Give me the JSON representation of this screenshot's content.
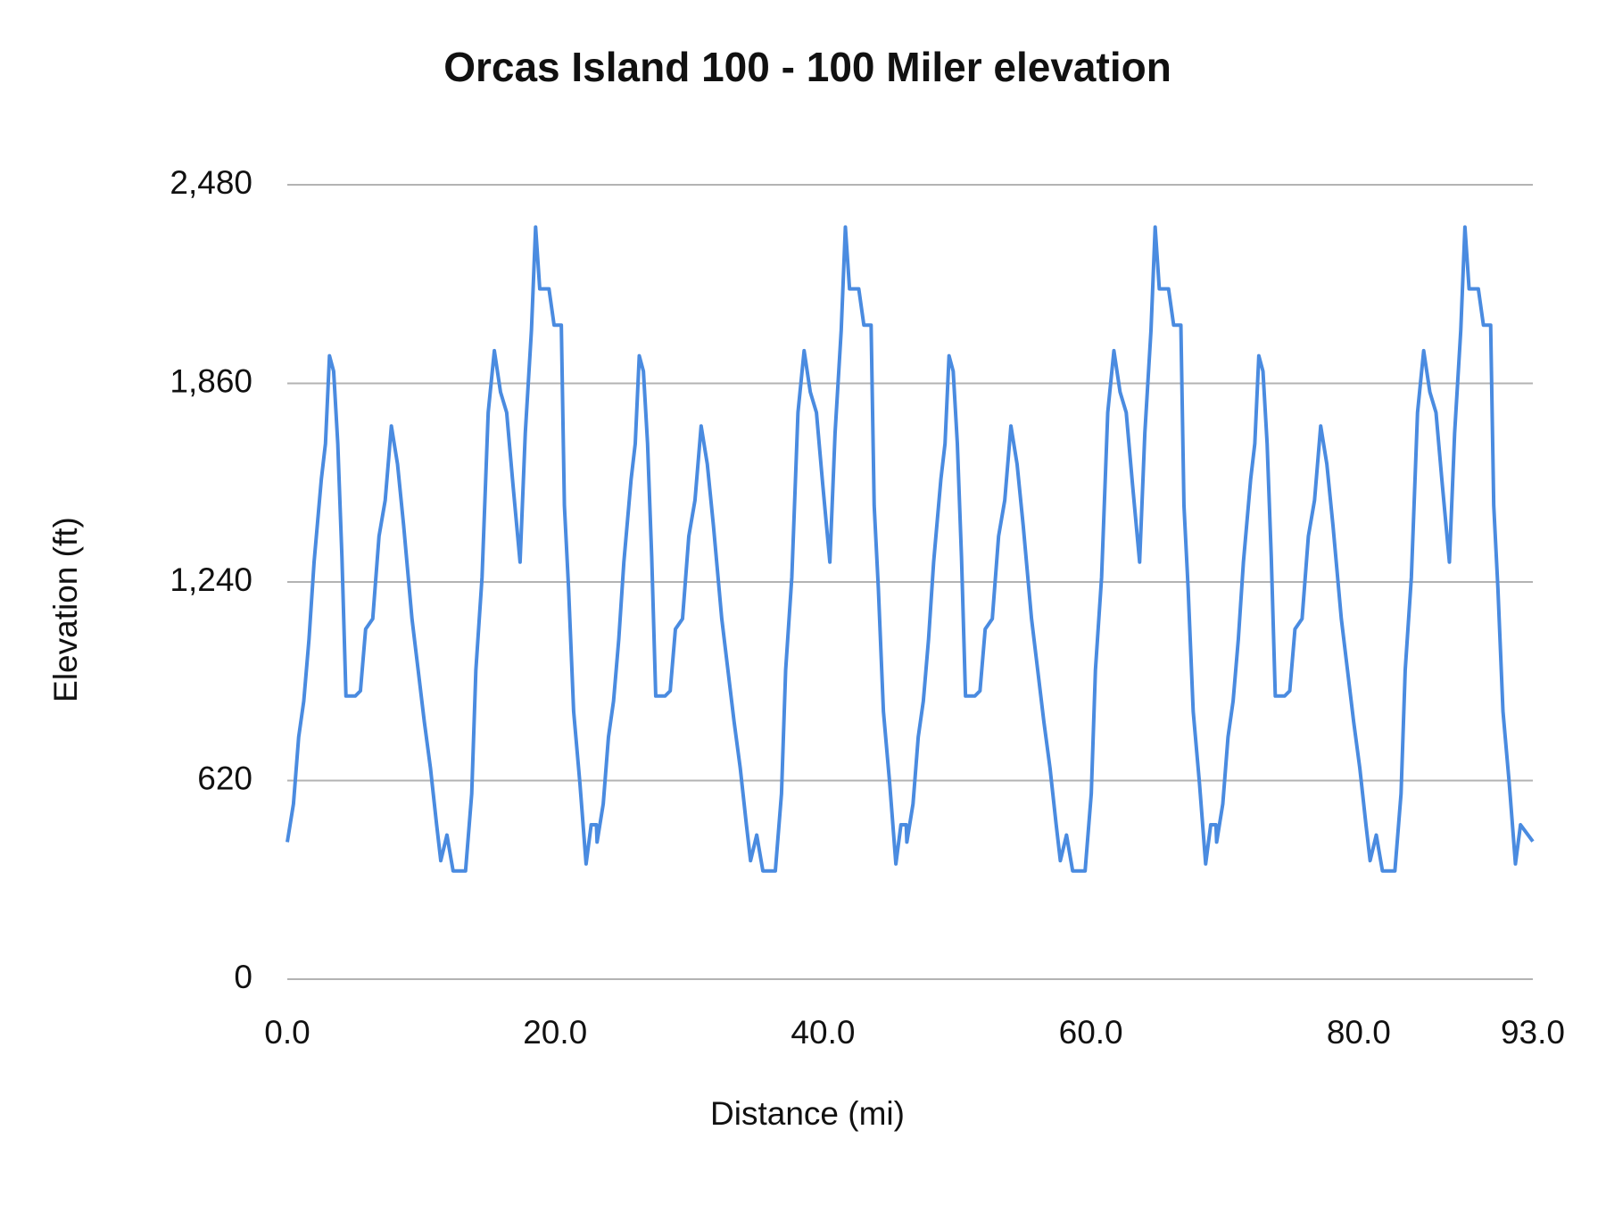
{
  "chart_data": {
    "type": "line",
    "title": "Orcas Island 100 - 100 Miler elevation",
    "x_label": "Distance (mi)",
    "y_label": "Elevation (ft)",
    "color": "#4a8be0",
    "grid": true,
    "xlim": [
      0,
      93
    ],
    "ylim": [
      0,
      2480
    ],
    "xticks": [
      {
        "value": 0,
        "label": "0.0"
      },
      {
        "value": 20,
        "label": "20.0"
      },
      {
        "value": 40,
        "label": "40.0"
      },
      {
        "value": 60,
        "label": "60.0"
      },
      {
        "value": 80,
        "label": "80.0"
      },
      {
        "value": 93,
        "label": "93.0"
      }
    ],
    "yticks": [
      0,
      620,
      {
        "value": 1240,
        "label": "1,240"
      },
      {
        "value": 1860,
        "label": "1,860"
      },
      {
        "value": 2480,
        "label": "2,480"
      }
    ],
    "x": [
      0,
      0.46,
      0.85,
      1.23,
      1.62,
      2.0,
      2.54,
      2.85,
      3.15,
      3.46,
      3.77,
      4.08,
      4.38,
      5.08,
      5.46,
      5.85,
      6.38,
      6.85,
      7.31,
      7.77,
      8.23,
      8.69,
      9.31,
      9.77,
      10.23,
      10.69,
      11.15,
      11.46,
      11.92,
      12.38,
      13.31,
      13.77,
      14.08,
      14.54,
      15.0,
      15.46,
      15.92,
      16.38,
      16.85,
      17.38,
      17.77,
      18.23,
      18.54,
      18.85,
      19.54,
      19.92,
      20.46,
      20.69,
      21.0,
      21.38,
      21.85,
      22.31,
      22.69,
      23.08,
      23.13,
      23.59,
      23.98,
      24.36,
      24.75,
      25.13,
      25.67,
      25.98,
      26.28,
      26.59,
      26.9,
      27.21,
      27.51,
      28.21,
      28.59,
      28.98,
      29.51,
      29.98,
      30.44,
      30.9,
      31.36,
      31.82,
      32.44,
      32.9,
      33.36,
      33.82,
      34.28,
      34.59,
      35.05,
      35.51,
      36.44,
      36.9,
      37.21,
      37.67,
      38.13,
      38.59,
      39.05,
      39.51,
      39.98,
      40.51,
      40.9,
      41.36,
      41.67,
      41.98,
      42.67,
      43.05,
      43.59,
      43.82,
      44.13,
      44.51,
      44.98,
      45.44,
      45.82,
      46.21,
      46.26,
      46.72,
      47.11,
      47.49,
      47.88,
      48.26,
      48.8,
      49.11,
      49.41,
      49.72,
      50.03,
      50.34,
      50.64,
      51.34,
      51.72,
      52.11,
      52.64,
      53.11,
      53.57,
      54.03,
      54.49,
      54.95,
      55.57,
      56.03,
      56.49,
      56.95,
      57.41,
      57.72,
      58.18,
      58.64,
      59.57,
      60.03,
      60.34,
      60.8,
      61.26,
      61.72,
      62.18,
      62.64,
      63.11,
      63.64,
      64.03,
      64.49,
      64.8,
      65.11,
      65.8,
      66.18,
      66.72,
      66.95,
      67.26,
      67.64,
      68.11,
      68.57,
      68.95,
      69.34,
      69.39,
      69.85,
      70.24,
      70.62,
      71.01,
      71.39,
      71.93,
      72.24,
      72.54,
      72.85,
      73.16,
      73.47,
      73.77,
      74.47,
      74.85,
      75.24,
      75.77,
      76.24,
      76.7,
      77.16,
      77.62,
      78.08,
      78.7,
      79.16,
      79.62,
      80.08,
      80.54,
      80.85,
      81.31,
      81.77,
      82.7,
      83.16,
      83.47,
      83.93,
      84.39,
      84.85,
      85.31,
      85.77,
      86.24,
      86.77,
      87.16,
      87.62,
      87.93,
      88.24,
      88.93,
      89.31,
      89.85,
      90.08,
      90.39,
      90.77,
      91.24,
      91.7,
      92.08,
      93.0
    ],
    "values": [
      428,
      547,
      756,
      868,
      1061,
      1302,
      1560,
      1672,
      1946,
      1898,
      1672,
      1318,
      884,
      884,
      900,
      1093,
      1125,
      1383,
      1495,
      1727,
      1608,
      1415,
      1125,
      965,
      804,
      659,
      482,
      370,
      450,
      338,
      338,
      579,
      965,
      1254,
      1769,
      1962,
      1833,
      1769,
      1544,
      1302,
      1705,
      2026,
      2348,
      2155,
      2155,
      2042,
      2042,
      1479,
      1222,
      836,
      611,
      360,
      482,
      482,
      428,
      547,
      756,
      868,
      1061,
      1302,
      1560,
      1672,
      1946,
      1898,
      1672,
      1318,
      884,
      884,
      900,
      1093,
      1125,
      1383,
      1495,
      1727,
      1608,
      1415,
      1125,
      965,
      804,
      659,
      482,
      370,
      450,
      338,
      338,
      579,
      965,
      1254,
      1769,
      1962,
      1833,
      1769,
      1544,
      1302,
      1705,
      2026,
      2348,
      2155,
      2155,
      2042,
      2042,
      1479,
      1222,
      836,
      611,
      360,
      482,
      482,
      428,
      547,
      756,
      868,
      1061,
      1302,
      1560,
      1672,
      1946,
      1898,
      1672,
      1318,
      884,
      884,
      900,
      1093,
      1125,
      1383,
      1495,
      1727,
      1608,
      1415,
      1125,
      965,
      804,
      659,
      482,
      370,
      450,
      338,
      338,
      579,
      965,
      1254,
      1769,
      1962,
      1833,
      1769,
      1544,
      1302,
      1705,
      2026,
      2348,
      2155,
      2155,
      2042,
      2042,
      1479,
      1222,
      836,
      611,
      360,
      482,
      482,
      428,
      547,
      756,
      868,
      1061,
      1302,
      1560,
      1672,
      1946,
      1898,
      1672,
      1318,
      884,
      884,
      900,
      1093,
      1125,
      1383,
      1495,
      1727,
      1608,
      1415,
      1125,
      965,
      804,
      659,
      482,
      370,
      450,
      338,
      338,
      579,
      965,
      1254,
      1769,
      1962,
      1833,
      1769,
      1544,
      1302,
      1705,
      2026,
      2348,
      2155,
      2155,
      2042,
      2042,
      1479,
      1222,
      836,
      611,
      360,
      482,
      430
    ]
  }
}
